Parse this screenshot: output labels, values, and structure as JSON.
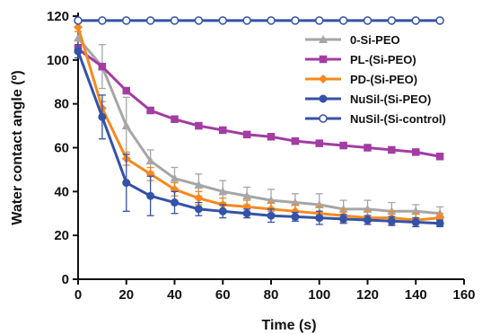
{
  "chart_data": {
    "type": "line",
    "title": "",
    "xlabel": "Time (s)",
    "ylabel": "Water contact angle (º)",
    "xlim": [
      0,
      160
    ],
    "ylim": [
      0,
      120
    ],
    "x_ticks": [
      0,
      20,
      40,
      60,
      80,
      100,
      120,
      140,
      160
    ],
    "y_ticks": [
      0,
      20,
      40,
      60,
      80,
      100,
      120
    ],
    "grid": false,
    "legend_position": "top-right",
    "x": [
      0,
      10,
      20,
      30,
      40,
      50,
      60,
      70,
      80,
      90,
      100,
      110,
      120,
      130,
      140,
      150
    ],
    "series": [
      {
        "name": "0-Si-PEO",
        "color": "#a6a6a6",
        "marker": "triangle",
        "values": [
          110,
          97,
          70,
          54,
          46,
          43,
          40,
          38,
          36,
          35,
          34,
          32,
          32,
          31,
          31,
          30
        ],
        "errors": [
          3,
          10,
          13,
          5,
          5,
          5,
          5,
          4,
          5,
          4,
          5,
          4,
          4,
          4,
          3,
          3
        ]
      },
      {
        "name": "PL-(Si-PEO)",
        "color": "#a33ca3",
        "marker": "square",
        "values": [
          105,
          97,
          86,
          77,
          73,
          70,
          68,
          66,
          65,
          63,
          62,
          61,
          60,
          59,
          58,
          56
        ],
        "errors": [
          1,
          1,
          1,
          1,
          1,
          1,
          1,
          1,
          1,
          1,
          1,
          1,
          1,
          1,
          1,
          1
        ]
      },
      {
        "name": "PD-(Si-PEO)",
        "color": "#f7891f",
        "marker": "diamond",
        "values": [
          115,
          78,
          55,
          48,
          41,
          37,
          34,
          33,
          32,
          31,
          30,
          29,
          28,
          28,
          27,
          28
        ],
        "errors": [
          2,
          3,
          3,
          3,
          3,
          3,
          3,
          3,
          3,
          3,
          3,
          3,
          3,
          3,
          3,
          2
        ]
      },
      {
        "name": "NuSil-(Si-PEO)",
        "color": "#3452a8",
        "marker": "circle",
        "values": [
          104,
          74,
          44,
          38,
          35,
          32,
          31,
          30,
          29,
          28.5,
          28,
          27.5,
          27,
          26.5,
          26,
          25.5
        ],
        "errors": [
          3,
          10,
          13,
          9,
          5,
          3,
          3,
          2,
          3,
          2,
          3,
          2,
          2,
          2,
          2,
          1.5
        ]
      },
      {
        "name": "NuSil-(Si-control)",
        "color": "#3452a8",
        "marker": "open-circle",
        "values": [
          118,
          118,
          118,
          118,
          118,
          118,
          118,
          118,
          118,
          118,
          118,
          118,
          118,
          118,
          118,
          118
        ],
        "errors": []
      }
    ]
  }
}
